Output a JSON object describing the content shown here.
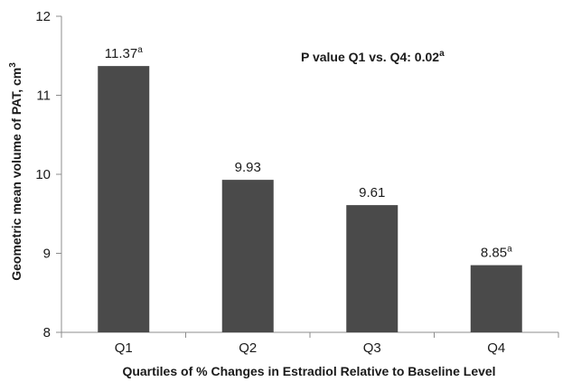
{
  "chart_data": {
    "type": "bar",
    "title": "",
    "xlabel": "Quartiles of % Changes in Estradiol Relative to Baseline Level",
    "ylabel": "Geometric mean volume of PAT, cm",
    "ylabel_superscript": "3",
    "categories": [
      "Q1",
      "Q2",
      "Q3",
      "Q4"
    ],
    "values": [
      11.37,
      9.93,
      9.61,
      8.85
    ],
    "data_labels": [
      "11.37",
      "9.93",
      "9.61",
      "8.85"
    ],
    "data_label_superscripts": [
      "a",
      "",
      "",
      "a"
    ],
    "ylim": [
      8,
      12
    ],
    "yticks": [
      "8",
      "9",
      "10",
      "11",
      "12"
    ],
    "grid": false,
    "legend": "none",
    "bar_color": "#4a4a4a",
    "annotation": {
      "text": "P value Q1 vs. Q4: 0.02",
      "superscript": "a"
    }
  }
}
